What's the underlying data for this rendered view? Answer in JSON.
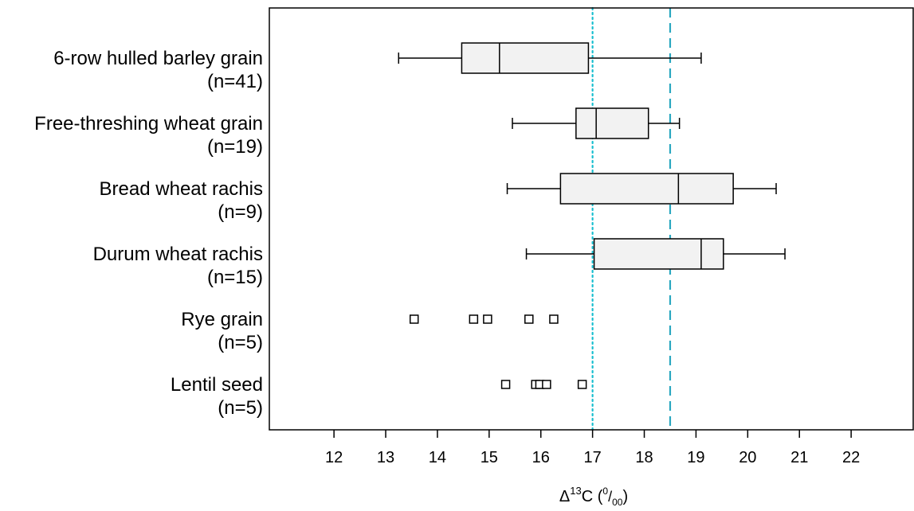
{
  "chart_data": {
    "type": "boxplot",
    "orientation": "horizontal",
    "xlabel": {
      "prefix": "Δ",
      "sup": "13",
      "main": "C (",
      "frac_num": "0",
      "frac_sep": "/",
      "frac_den": "00",
      "suffix": ")"
    },
    "xlim": [
      10.75,
      23.2
    ],
    "xticks": [
      12,
      13,
      14,
      15,
      16,
      17,
      18,
      19,
      20,
      21,
      22
    ],
    "grid": false,
    "legend": "none",
    "reference_lines": [
      {
        "value": 17.0,
        "style": "dotted",
        "color": "#17becf"
      },
      {
        "value": 18.5,
        "style": "dashed",
        "color": "#2aa7c0"
      }
    ],
    "categories": [
      {
        "label": "6-row hulled barley grain",
        "n_label": "(n=41)",
        "kind": "box",
        "whisker_low": 13.25,
        "q1": 14.47,
        "median": 15.2,
        "q3": 16.92,
        "whisker_high": 19.1
      },
      {
        "label": "Free-threshing wheat grain",
        "n_label": "(n=19)",
        "kind": "box",
        "whisker_low": 15.45,
        "q1": 16.68,
        "median": 17.07,
        "q3": 18.08,
        "whisker_high": 18.68
      },
      {
        "label": "Bread wheat rachis",
        "n_label": "(n=9)",
        "kind": "box",
        "whisker_low": 15.35,
        "q1": 16.38,
        "median": 18.66,
        "q3": 19.72,
        "whisker_high": 20.55
      },
      {
        "label": "Durum wheat rachis",
        "n_label": "(n=15)",
        "kind": "box",
        "whisker_low": 15.72,
        "q1": 17.03,
        "median": 19.1,
        "q3": 19.53,
        "whisker_high": 20.72
      },
      {
        "label": "Rye grain",
        "n_label": "(n=5)",
        "kind": "points",
        "points": [
          13.55,
          14.7,
          14.97,
          15.77,
          16.25
        ]
      },
      {
        "label": "Lentil seed",
        "n_label": "(n=5)",
        "kind": "points",
        "points": [
          15.32,
          15.9,
          15.98,
          16.11,
          16.8
        ]
      }
    ]
  }
}
